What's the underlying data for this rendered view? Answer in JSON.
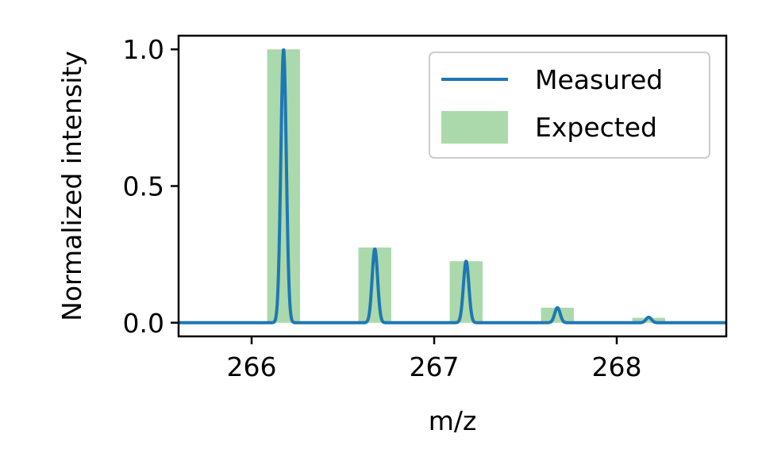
{
  "chart_data": {
    "type": "line",
    "title": "",
    "xlabel": "m/z",
    "ylabel": "Normalized intensity",
    "xlim": [
      265.6,
      268.6
    ],
    "ylim": [
      -0.05,
      1.05
    ],
    "xticks": [
      266,
      267,
      268
    ],
    "xtick_labels": [
      "266",
      "267",
      "268"
    ],
    "yticks": [
      0.0,
      0.5,
      1.0
    ],
    "ytick_labels": [
      "0.0",
      "0.5",
      "1.0"
    ],
    "grid": false,
    "legend_position": "top-right",
    "series": [
      {
        "name": "Measured",
        "kind": "line",
        "color": "#1f77b4",
        "baseline": 0.0,
        "peaks": [
          {
            "mz": 266.175,
            "intensity": 1.0
          },
          {
            "mz": 266.675,
            "intensity": 0.27
          },
          {
            "mz": 267.175,
            "intensity": 0.225
          },
          {
            "mz": 267.675,
            "intensity": 0.055
          },
          {
            "mz": 268.175,
            "intensity": 0.02
          }
        ]
      },
      {
        "name": "Expected",
        "kind": "bar",
        "color": "#2ca02c",
        "bar_width": 0.18,
        "bars": [
          {
            "mz": 266.175,
            "intensity": 1.0
          },
          {
            "mz": 266.675,
            "intensity": 0.275
          },
          {
            "mz": 267.175,
            "intensity": 0.225
          },
          {
            "mz": 267.675,
            "intensity": 0.055
          },
          {
            "mz": 268.175,
            "intensity": 0.018
          }
        ]
      }
    ]
  }
}
